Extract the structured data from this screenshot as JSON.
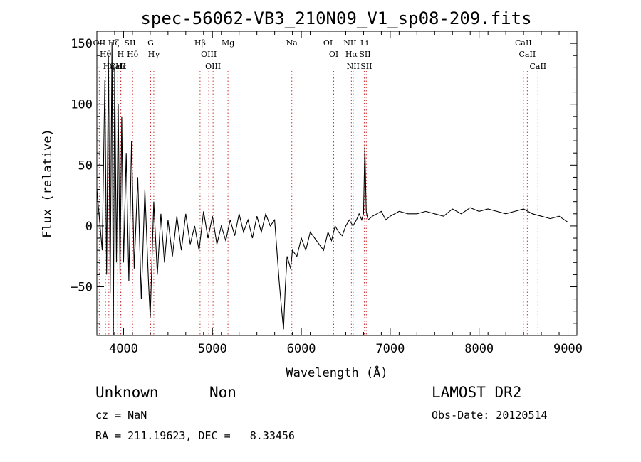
{
  "chart_data": {
    "type": "line",
    "title": "spec-56062-VB3_210N09_V1_sp08-209.fits",
    "xlabel": "Wavelength (Å)",
    "ylabel": "Flux (relative)",
    "xlim": [
      3700,
      9100
    ],
    "ylim": [
      -90,
      160
    ],
    "xticks": [
      4000,
      5000,
      6000,
      7000,
      8000,
      9000
    ],
    "yticks": [
      -50,
      0,
      50,
      100,
      150
    ],
    "grid": false,
    "series": [
      {
        "name": "flux",
        "x": [
          3700,
          3760,
          3790,
          3810,
          3830,
          3850,
          3870,
          3885,
          3900,
          3920,
          3940,
          3960,
          3980,
          4000,
          4030,
          4060,
          4090,
          4120,
          4160,
          4200,
          4240,
          4280,
          4300,
          4340,
          4380,
          4420,
          4460,
          4500,
          4550,
          4600,
          4650,
          4700,
          4750,
          4800,
          4850,
          4900,
          4950,
          5000,
          5050,
          5100,
          5150,
          5200,
          5250,
          5300,
          5350,
          5400,
          5450,
          5500,
          5550,
          5600,
          5650,
          5700,
          5750,
          5780,
          5800,
          5820,
          5840,
          5860,
          5880,
          5900,
          5950,
          6000,
          6050,
          6100,
          6150,
          6200,
          6250,
          6300,
          6340,
          6380,
          6420,
          6460,
          6500,
          6540,
          6580,
          6620,
          6650,
          6680,
          6700,
          6715,
          6730,
          6750,
          6800,
          6850,
          6900,
          6950,
          7000,
          7100,
          7200,
          7300,
          7400,
          7500,
          7600,
          7700,
          7800,
          7900,
          8000,
          8100,
          8200,
          8300,
          8400,
          8500,
          8600,
          8700,
          8800,
          8900,
          9000
        ],
        "values": [
          30,
          -20,
          120,
          -40,
          140,
          -55,
          150,
          -90,
          130,
          -30,
          100,
          -40,
          90,
          -30,
          60,
          -45,
          70,
          -35,
          40,
          -60,
          30,
          -45,
          -75,
          20,
          -40,
          10,
          -30,
          5,
          -25,
          8,
          -20,
          10,
          -15,
          0,
          -20,
          12,
          -10,
          8,
          -15,
          0,
          -12,
          5,
          -8,
          10,
          -5,
          5,
          -10,
          8,
          -5,
          10,
          0,
          5,
          -45,
          -70,
          -85,
          -50,
          -25,
          -30,
          -35,
          -20,
          -25,
          -10,
          -20,
          -5,
          -10,
          -15,
          -20,
          -5,
          -12,
          0,
          -5,
          -8,
          0,
          5,
          0,
          5,
          10,
          5,
          10,
          65,
          12,
          5,
          8,
          10,
          12,
          5,
          8,
          12,
          10,
          10,
          12,
          10,
          8,
          14,
          10,
          15,
          12,
          14,
          12,
          10,
          12,
          14,
          10,
          8,
          6,
          8,
          3
        ]
      }
    ],
    "line_markers": [
      {
        "label": "OII",
        "x": 3727
      },
      {
        "label": "Hθ",
        "x": 3797
      },
      {
        "label": "Hη",
        "x": 3835
      },
      {
        "label": "Hζ",
        "x": 3889
      },
      {
        "label": "CaII",
        "x": 3934
      },
      {
        "label": "H",
        "x": 3968
      },
      {
        "label": "Hε",
        "x": 3970
      },
      {
        "label": "SII",
        "x": 4072
      },
      {
        "label": "Hδ",
        "x": 4102
      },
      {
        "label": "G",
        "x": 4305
      },
      {
        "label": "Hγ",
        "x": 4340
      },
      {
        "label": "Hβ",
        "x": 4861
      },
      {
        "label": "OIII",
        "x": 4959
      },
      {
        "label": "OIII",
        "x": 5007
      },
      {
        "label": "Mg",
        "x": 5175
      },
      {
        "label": "Na",
        "x": 5893
      },
      {
        "label": "OI",
        "x": 6300
      },
      {
        "label": "OI",
        "x": 6364
      },
      {
        "label": "NII",
        "x": 6548
      },
      {
        "label": "Hα",
        "x": 6563
      },
      {
        "label": "NII",
        "x": 6583
      },
      {
        "label": "Li",
        "x": 6708
      },
      {
        "label": "SII",
        "x": 6716
      },
      {
        "label": "SII",
        "x": 6731
      },
      {
        "label": "CaII",
        "x": 8498
      },
      {
        "label": "CaII",
        "x": 8542
      },
      {
        "label": "CaII",
        "x": 8662
      }
    ]
  },
  "info": {
    "class": "Unknown",
    "subclass": "Non",
    "survey": "LAMOST DR2",
    "cz": "cz = NaN",
    "obs_date": "Obs-Date: 20120514",
    "coords": "RA = 211.19623, DEC =   8.33456"
  }
}
